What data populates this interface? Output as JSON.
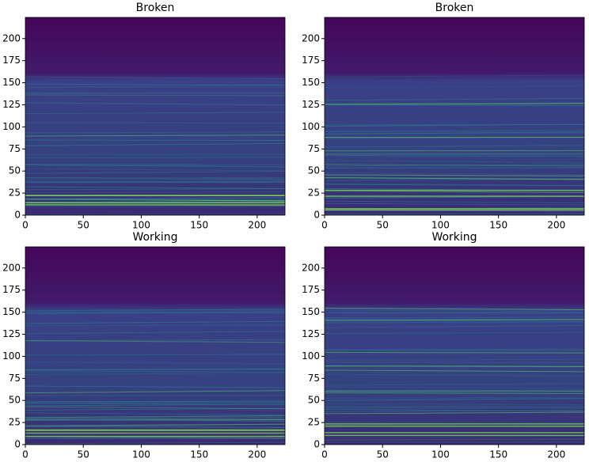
{
  "chart_data": [
    {
      "type": "heatmap",
      "title": "Broken",
      "xlim": [
        0,
        224
      ],
      "ylim": [
        0,
        224
      ],
      "xticks": [
        0,
        50,
        100,
        150,
        200
      ],
      "yticks": [
        0,
        25,
        50,
        75,
        100,
        125,
        150,
        175,
        200
      ]
    },
    {
      "type": "heatmap",
      "title": "Broken",
      "xlim": [
        0,
        224
      ],
      "ylim": [
        0,
        224
      ],
      "xticks": [
        0,
        50,
        100,
        150,
        200
      ],
      "yticks": [
        0,
        25,
        50,
        75,
        100,
        125,
        150,
        175,
        200
      ]
    },
    {
      "type": "heatmap",
      "title": "Working",
      "xlim": [
        0,
        224
      ],
      "ylim": [
        0,
        224
      ],
      "xticks": [
        0,
        50,
        100,
        150,
        200
      ],
      "yticks": [
        0,
        25,
        50,
        75,
        100,
        125,
        150,
        175,
        200
      ]
    },
    {
      "type": "heatmap",
      "title": "Working",
      "xlim": [
        0,
        224
      ],
      "ylim": [
        0,
        224
      ],
      "xticks": [
        0,
        50,
        100,
        150,
        200
      ],
      "yticks": [
        0,
        25,
        50,
        75,
        100,
        125,
        150,
        175,
        200
      ]
    }
  ]
}
